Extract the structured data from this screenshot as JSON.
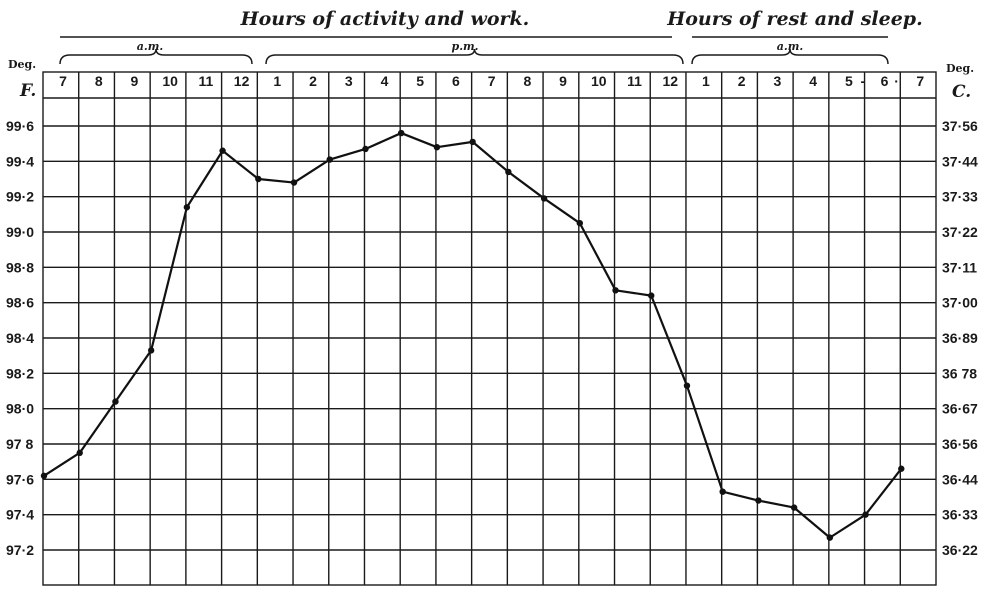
{
  "chart_data": {
    "type": "line",
    "header_left": "Hours of activity and work.",
    "header_right": "Hours of rest and sleep.",
    "period_labels": [
      "a.m.",
      "p.m.",
      "a.m."
    ],
    "left_axis": {
      "deg_label": "Deg.",
      "unit_label": "F."
    },
    "right_axis": {
      "deg_label": "Deg.",
      "unit_label": "C."
    },
    "hour_labels": [
      "7",
      "8",
      "9",
      "10",
      "11",
      "12",
      "1",
      "2",
      "3",
      "4",
      "5",
      "6",
      "7",
      "8",
      "9",
      "10",
      "11",
      "12",
      "1",
      "2",
      "3",
      "4",
      "5",
      "-",
      "6",
      "·",
      "7"
    ],
    "yticks_f": [
      "99·6",
      "99·4",
      "99·2",
      "99·0",
      "98·8",
      "98·6",
      "98·4",
      "98·2",
      "98·0",
      "97 8",
      "97·6",
      "97·4",
      "97·2"
    ],
    "yticks_c": [
      "37·56",
      "37·44",
      "37·33",
      "37·22",
      "37·11",
      "37·00",
      "36·89",
      "36 78",
      "36·67",
      "36·56",
      "36·44",
      "36·33",
      "36·22"
    ],
    "ylim_f": [
      97.2,
      99.6
    ],
    "grid": true,
    "series": [
      {
        "x": [
          0,
          1,
          2,
          3,
          4,
          5,
          6,
          7,
          8,
          9,
          10,
          11,
          12,
          13,
          14,
          15,
          16,
          17,
          18,
          19,
          20,
          21,
          22,
          23,
          24
        ],
        "y": [
          97.62,
          97.75,
          98.04,
          98.33,
          99.14,
          99.46,
          99.3,
          99.28,
          99.41,
          99.47,
          99.56,
          99.48,
          99.51,
          99.34,
          99.19,
          99.05,
          98.67,
          98.64,
          98.13,
          97.53,
          97.48,
          97.44,
          97.27,
          97.4,
          97.66
        ]
      }
    ]
  }
}
